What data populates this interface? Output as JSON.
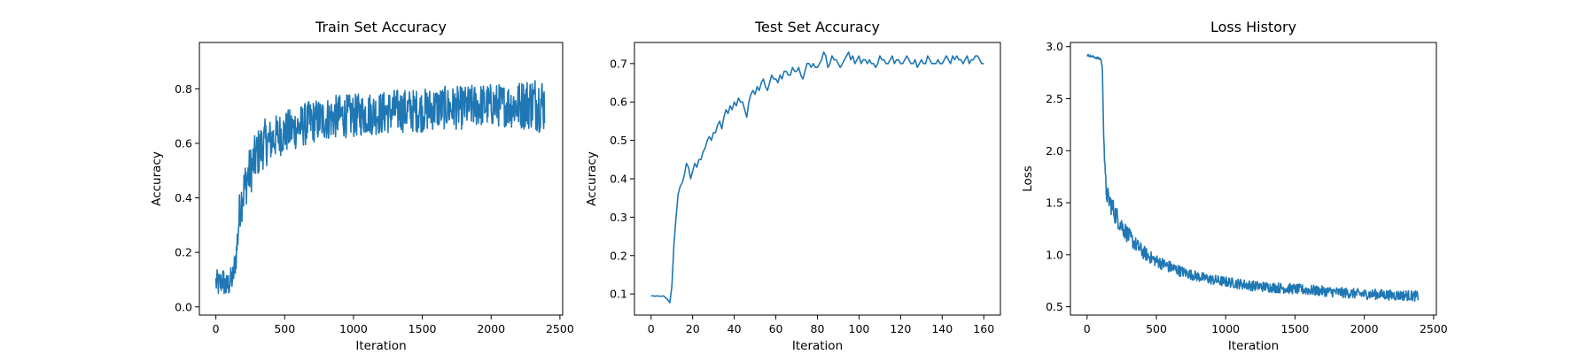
{
  "colors": {
    "series": "#1f77b4",
    "axes": "#000000",
    "background": "#ffffff"
  },
  "chart_data": [
    {
      "type": "line",
      "title": "Train Set Accuracy",
      "xlabel": "Iteration",
      "ylabel": "Accuracy",
      "xlim": [
        -120,
        2520
      ],
      "ylim": [
        -0.03,
        0.97
      ],
      "xticks": [
        0,
        500,
        1000,
        1500,
        2000,
        2500
      ],
      "xtick_labels": [
        "0",
        "500",
        "1000",
        "1500",
        "2000",
        "2500"
      ],
      "yticks": [
        0.0,
        0.2,
        0.4,
        0.6,
        0.8
      ],
      "ytick_labels": [
        "0.0",
        "0.2",
        "0.4",
        "0.6",
        "0.8"
      ],
      "grid": false,
      "series": [
        {
          "x": [
            0,
            25,
            50,
            75,
            100,
            125,
            150,
            175,
            200,
            225,
            250,
            275,
            300,
            350,
            400,
            450,
            500,
            550,
            600,
            700,
            800,
            900,
            1000,
            1100,
            1200,
            1300,
            1400,
            1500,
            1600,
            1700,
            1800,
            1900,
            2000,
            2100,
            2200,
            2300,
            2350,
            2390
          ],
          "y": [
            0.09,
            0.08,
            0.1,
            0.07,
            0.09,
            0.11,
            0.2,
            0.37,
            0.42,
            0.47,
            0.5,
            0.53,
            0.56,
            0.6,
            0.61,
            0.63,
            0.64,
            0.65,
            0.66,
            0.68,
            0.69,
            0.7,
            0.7,
            0.71,
            0.71,
            0.72,
            0.72,
            0.72,
            0.73,
            0.73,
            0.73,
            0.74,
            0.74,
            0.74,
            0.74,
            0.75,
            0.75,
            0.74
          ],
          "noise": [
            0.05,
            0.05,
            0.05,
            0.05,
            0.05,
            0.05,
            0.06,
            0.08,
            0.09,
            0.09,
            0.09,
            0.09,
            0.09,
            0.09,
            0.08,
            0.08,
            0.08,
            0.08,
            0.08,
            0.08,
            0.08,
            0.08,
            0.08,
            0.08,
            0.08,
            0.08,
            0.08,
            0.08,
            0.08,
            0.08,
            0.08,
            0.08,
            0.08,
            0.08,
            0.09,
            0.1,
            0.11,
            0.1
          ]
        }
      ]
    },
    {
      "type": "line",
      "title": "Test Set Accuracy",
      "xlabel": "Iteration",
      "ylabel": "Accuracy",
      "xlim": [
        -8,
        168
      ],
      "ylim": [
        0.045,
        0.755
      ],
      "xticks": [
        0,
        20,
        40,
        60,
        80,
        100,
        120,
        140,
        160
      ],
      "xtick_labels": [
        "0",
        "20",
        "40",
        "60",
        "80",
        "100",
        "120",
        "140",
        "160"
      ],
      "yticks": [
        0.1,
        0.2,
        0.3,
        0.4,
        0.5,
        0.6,
        0.7
      ],
      "ytick_labels": [
        "0.1",
        "0.2",
        "0.3",
        "0.4",
        "0.5",
        "0.6",
        "0.7"
      ],
      "grid": false,
      "series": [
        {
          "x": [
            0,
            1,
            2,
            3,
            4,
            5,
            6,
            7,
            8,
            9,
            10,
            11,
            12,
            13,
            14,
            15,
            16,
            17,
            18,
            19,
            20,
            21,
            22,
            23,
            24,
            25,
            26,
            27,
            28,
            29,
            30,
            31,
            32,
            33,
            34,
            35,
            36,
            37,
            38,
            39,
            40,
            41,
            42,
            43,
            44,
            45,
            46,
            47,
            48,
            49,
            50,
            51,
            52,
            53,
            54,
            55,
            56,
            57,
            58,
            59,
            60,
            61,
            62,
            63,
            64,
            65,
            66,
            67,
            68,
            69,
            70,
            71,
            72,
            73,
            74,
            75,
            76,
            77,
            78,
            79,
            80,
            81,
            82,
            83,
            84,
            85,
            86,
            87,
            88,
            89,
            90,
            91,
            92,
            93,
            94,
            95,
            96,
            97,
            98,
            99,
            100,
            101,
            102,
            103,
            104,
            105,
            106,
            107,
            108,
            109,
            110,
            111,
            112,
            113,
            114,
            115,
            116,
            117,
            118,
            119,
            120,
            121,
            122,
            123,
            124,
            125,
            126,
            127,
            128,
            129,
            130,
            131,
            132,
            133,
            134,
            135,
            136,
            137,
            138,
            139,
            140,
            141,
            142,
            143,
            144,
            145,
            146,
            147,
            148,
            149,
            150,
            151,
            152,
            153,
            154,
            155,
            156,
            157,
            158,
            159,
            160
          ],
          "y": [
            0.095,
            0.095,
            0.094,
            0.095,
            0.094,
            0.094,
            0.095,
            0.09,
            0.085,
            0.077,
            0.12,
            0.23,
            0.3,
            0.36,
            0.38,
            0.39,
            0.41,
            0.44,
            0.43,
            0.4,
            0.42,
            0.44,
            0.43,
            0.45,
            0.45,
            0.47,
            0.48,
            0.5,
            0.51,
            0.5,
            0.52,
            0.52,
            0.54,
            0.55,
            0.53,
            0.56,
            0.58,
            0.57,
            0.59,
            0.58,
            0.6,
            0.59,
            0.61,
            0.6,
            0.6,
            0.58,
            0.56,
            0.6,
            0.62,
            0.63,
            0.62,
            0.64,
            0.63,
            0.65,
            0.66,
            0.64,
            0.63,
            0.65,
            0.67,
            0.66,
            0.66,
            0.65,
            0.67,
            0.66,
            0.68,
            0.68,
            0.67,
            0.67,
            0.69,
            0.68,
            0.68,
            0.69,
            0.67,
            0.66,
            0.68,
            0.7,
            0.7,
            0.69,
            0.7,
            0.69,
            0.69,
            0.7,
            0.71,
            0.73,
            0.72,
            0.69,
            0.7,
            0.72,
            0.71,
            0.71,
            0.7,
            0.69,
            0.7,
            0.71,
            0.72,
            0.73,
            0.71,
            0.72,
            0.7,
            0.71,
            0.72,
            0.7,
            0.71,
            0.71,
            0.7,
            0.71,
            0.7,
            0.7,
            0.69,
            0.7,
            0.72,
            0.71,
            0.71,
            0.7,
            0.7,
            0.71,
            0.72,
            0.7,
            0.71,
            0.71,
            0.7,
            0.7,
            0.71,
            0.72,
            0.71,
            0.7,
            0.7,
            0.71,
            0.69,
            0.7,
            0.71,
            0.7,
            0.7,
            0.72,
            0.71,
            0.7,
            0.7,
            0.7,
            0.71,
            0.7,
            0.7,
            0.71,
            0.72,
            0.71,
            0.7,
            0.72,
            0.71,
            0.72,
            0.71,
            0.71,
            0.7,
            0.71,
            0.72,
            0.7,
            0.71,
            0.71,
            0.72,
            0.72,
            0.71,
            0.7,
            0.7
          ]
        }
      ]
    },
    {
      "type": "line",
      "title": "Loss History",
      "xlabel": "Iteration",
      "ylabel": "Loss",
      "xlim": [
        -120,
        2520
      ],
      "ylim": [
        0.42,
        3.04
      ],
      "xticks": [
        0,
        500,
        1000,
        1500,
        2000,
        2500
      ],
      "xtick_labels": [
        "0",
        "500",
        "1000",
        "1500",
        "2000",
        "2500"
      ],
      "yticks": [
        0.5,
        1.0,
        1.5,
        2.0,
        2.5,
        3.0
      ],
      "ytick_labels": [
        "0.5",
        "1.0",
        "1.5",
        "2.0",
        "2.5",
        "3.0"
      ],
      "grid": false,
      "series": [
        {
          "x": [
            0,
            25,
            50,
            75,
            100,
            110,
            120,
            130,
            140,
            150,
            175,
            200,
            250,
            300,
            350,
            400,
            450,
            500,
            600,
            700,
            800,
            900,
            1000,
            1100,
            1200,
            1300,
            1400,
            1500,
            1600,
            1700,
            1800,
            1900,
            2000,
            2100,
            2200,
            2300,
            2390
          ],
          "y": [
            2.92,
            2.91,
            2.9,
            2.89,
            2.88,
            2.8,
            2.2,
            1.75,
            1.6,
            1.55,
            1.48,
            1.4,
            1.28,
            1.18,
            1.1,
            1.03,
            0.98,
            0.94,
            0.88,
            0.83,
            0.79,
            0.76,
            0.74,
            0.72,
            0.7,
            0.69,
            0.68,
            0.67,
            0.66,
            0.65,
            0.64,
            0.63,
            0.62,
            0.62,
            0.61,
            0.61,
            0.6
          ],
          "noise": [
            0.01,
            0.01,
            0.01,
            0.01,
            0.01,
            0.03,
            0.08,
            0.1,
            0.1,
            0.1,
            0.1,
            0.1,
            0.09,
            0.08,
            0.07,
            0.07,
            0.06,
            0.06,
            0.06,
            0.05,
            0.05,
            0.05,
            0.05,
            0.05,
            0.05,
            0.05,
            0.05,
            0.05,
            0.05,
            0.05,
            0.05,
            0.05,
            0.05,
            0.05,
            0.05,
            0.05,
            0.05
          ]
        }
      ]
    }
  ]
}
